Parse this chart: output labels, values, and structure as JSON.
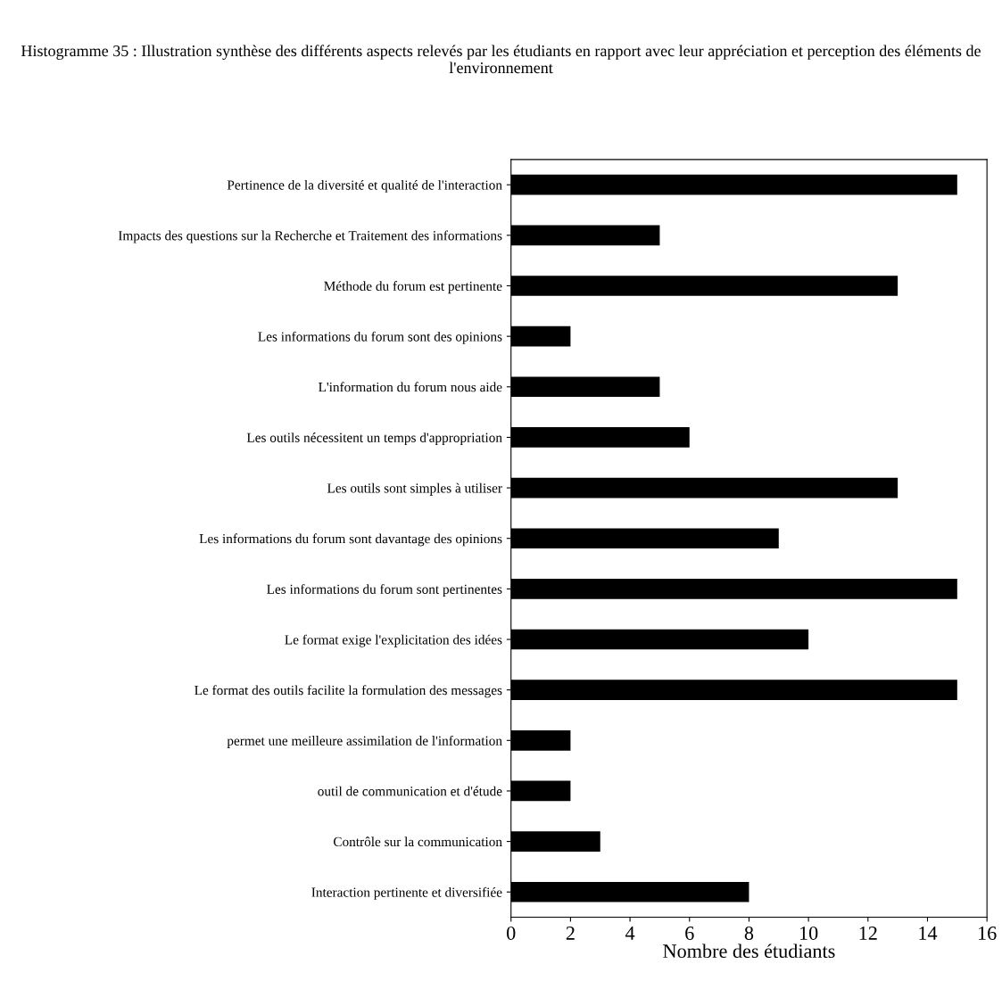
{
  "chart_data": {
    "type": "bar",
    "orientation": "horizontal",
    "title": "Histogramme 35 : Illustration synthèse des différents aspects relevés par les étudiants en rapport avec leur appréciation et perception des éléments de l'environnement",
    "xlabel": "Nombre des étudiants",
    "categories": [
      "Pertinence de la diversité et qualité de l'interaction",
      "Impacts des questions sur la Recherche et Traitement des informations",
      "Méthode du forum est pertinente",
      "Les informations du forum sont des opinions",
      "L'information du forum nous aide",
      "Les outils nécessitent un temps d'appropriation",
      "Les outils sont simples à utiliser",
      "Les informations du forum sont davantage des opinions",
      "Les informations du forum sont pertinentes",
      "Le format exige l'explicitation des idées",
      "Le format des outils facilite la formulation des messages",
      "permet une meilleure assimilation de l'information",
      "outil de communication et d'étude",
      "Contrôle sur la communication",
      "Interaction pertinente et diversifiée"
    ],
    "values": [
      15,
      5,
      13,
      2,
      5,
      6,
      13,
      9,
      15,
      10,
      15,
      2,
      2,
      3,
      8
    ],
    "color": "#000000",
    "xlim": [
      0,
      16
    ],
    "xticks": [
      0,
      2,
      4,
      6,
      8,
      10,
      12,
      14,
      16
    ],
    "grid": false,
    "legend": false
  }
}
